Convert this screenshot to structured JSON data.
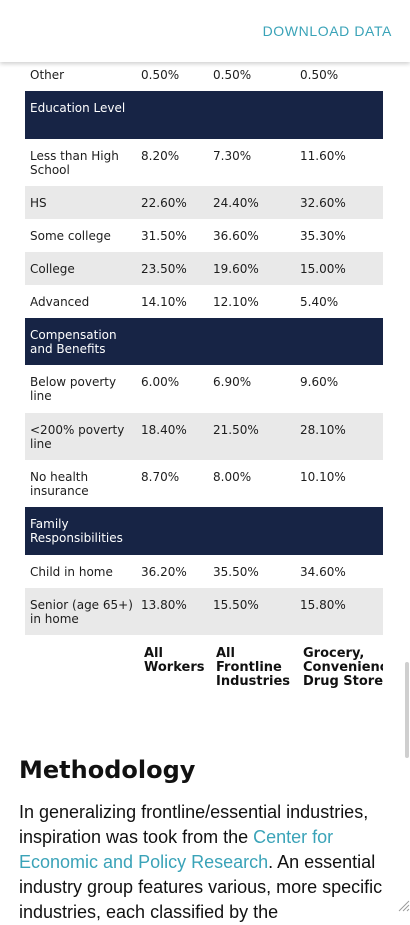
{
  "header": {
    "download_label": "DOWNLOAD DATA"
  },
  "table": {
    "columns": [
      "All Workers",
      "All Frontline Industries",
      "Grocery, Convenience & Drug Stores"
    ],
    "rows": [
      {
        "type": "data",
        "label": "Other",
        "values": [
          "0.50%",
          "0.50%",
          "0.50%"
        ]
      },
      {
        "type": "section",
        "label": "Education Level"
      },
      {
        "type": "data",
        "label": "Less than High School",
        "values": [
          "8.20%",
          "7.30%",
          "11.60%"
        ]
      },
      {
        "type": "data",
        "label": "HS",
        "values": [
          "22.60%",
          "24.40%",
          "32.60%"
        ]
      },
      {
        "type": "data",
        "label": "Some college",
        "values": [
          "31.50%",
          "36.60%",
          "35.30%"
        ]
      },
      {
        "type": "data",
        "label": "College",
        "values": [
          "23.50%",
          "19.60%",
          "15.00%"
        ]
      },
      {
        "type": "data",
        "label": "Advanced",
        "values": [
          "14.10%",
          "12.10%",
          "5.40%"
        ]
      },
      {
        "type": "section",
        "label": "Compensation and Benefits"
      },
      {
        "type": "data",
        "label": "Below poverty line",
        "values": [
          "6.00%",
          "6.90%",
          "9.60%"
        ]
      },
      {
        "type": "data",
        "label": "<200% poverty line",
        "values": [
          "18.40%",
          "21.50%",
          "28.10%"
        ]
      },
      {
        "type": "data",
        "label": "No health insurance",
        "values": [
          "8.70%",
          "8.00%",
          "10.10%"
        ]
      },
      {
        "type": "section",
        "label": "Family Responsibilities"
      },
      {
        "type": "data",
        "label": "Child in home",
        "values": [
          "36.20%",
          "35.50%",
          "34.60%"
        ]
      },
      {
        "type": "data",
        "label": "Senior (age 65+) in home",
        "values": [
          "13.80%",
          "15.50%",
          "15.80%"
        ]
      }
    ]
  },
  "methodology": {
    "title": "Methodology",
    "text_before": "In generalizing frontline/essential industries, inspiration was took from the ",
    "link_text": "Center for Economic and Policy Research",
    "text_after": ". An essential industry group features various, more specific industries, each classified by the"
  }
}
